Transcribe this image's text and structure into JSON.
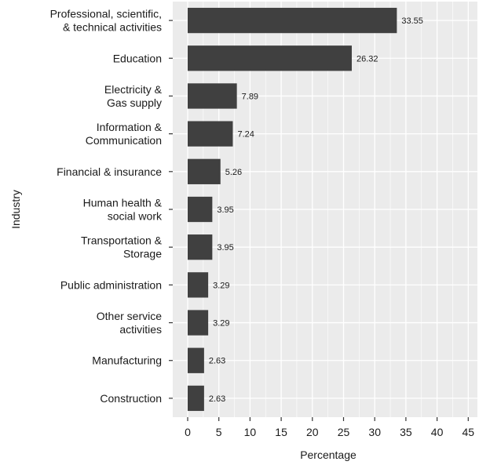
{
  "chart_data": {
    "type": "bar",
    "orientation": "horizontal",
    "xlabel": "Percentage",
    "ylabel": "Industry",
    "xlim": [
      0,
      46
    ],
    "x_ticks": [
      0,
      5,
      10,
      15,
      20,
      25,
      30,
      35,
      40,
      45
    ],
    "grid": true,
    "colors": {
      "bar": "#404040",
      "panel": "#ebebeb",
      "grid": "#ffffff"
    },
    "categories": [
      [
        "Professional, scientific,",
        "& technical activities"
      ],
      [
        "Education"
      ],
      [
        "Electricity &",
        "Gas supply"
      ],
      [
        "Information &",
        "Communication"
      ],
      [
        "Financial & insurance"
      ],
      [
        "Human health &",
        "social work"
      ],
      [
        "Transportation &",
        "Storage"
      ],
      [
        "Public administration"
      ],
      [
        "Other service",
        "activities"
      ],
      [
        "Manufacturing"
      ],
      [
        "Construction"
      ]
    ],
    "values": [
      33.55,
      26.32,
      7.89,
      7.24,
      5.26,
      3.95,
      3.95,
      3.29,
      3.29,
      2.63,
      2.63
    ],
    "value_labels": [
      "33.55",
      "26.32",
      "7.89",
      "7.24",
      "5.26",
      "3.95",
      "3.95",
      "3.29",
      "3.29",
      "2.63",
      "2.63"
    ]
  }
}
